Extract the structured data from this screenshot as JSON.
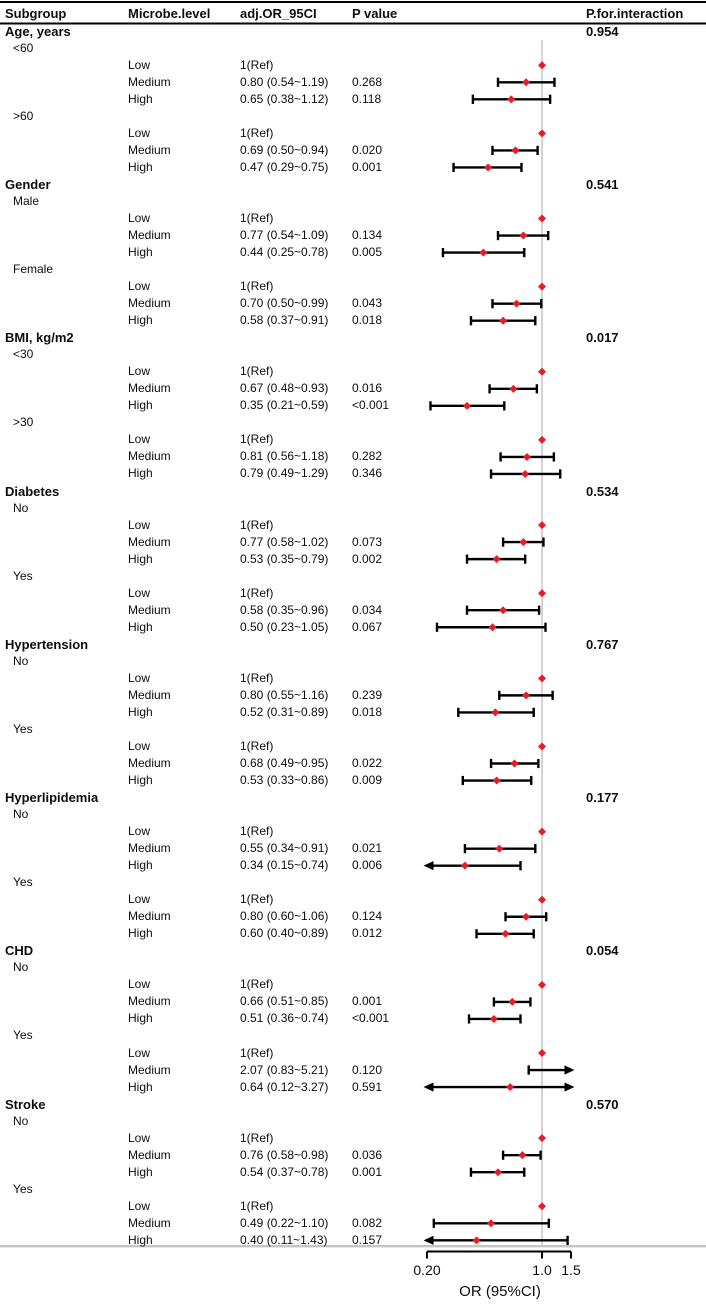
{
  "columns": {
    "subgroup": "Subgroup",
    "microbe_level": "Microbe.level",
    "adj_or": "adj.OR_95CI",
    "p_value": "P value",
    "p_interaction": "P.for.interaction"
  },
  "colors": {
    "marker": "#e81c24",
    "ci_line": "#000000",
    "ref_line": "#c9c9c9",
    "top_rule": "#000000",
    "header_rule": "#000000",
    "bottom_rule": "#c4c4c4",
    "text": "#0d0d0d"
  },
  "chart_data": {
    "type": "forest",
    "xlabel": "OR (95%CI)",
    "x_scale": "log",
    "x_ticks": [
      0.2,
      1.0,
      1.5
    ],
    "x_tick_labels": [
      "0.20",
      "1.0",
      "1.5"
    ],
    "clip_range": [
      0.2,
      1.5
    ],
    "ref_value": 1.0,
    "legend": "red diamond = adjusted OR point estimate; black bar = 95% CI; arrows = CI exceeds axis range",
    "groups": [
      {
        "label": "Age, years",
        "p_interaction": "0.954",
        "subgroups": [
          {
            "label": "<60",
            "levels": [
              {
                "level": "Low",
                "or_text": "1(Ref)",
                "p": "",
                "ref": true
              },
              {
                "level": "Medium",
                "or_text": "0.80 (0.54~1.19)",
                "p": "0.268",
                "or": 0.8,
                "lo": 0.54,
                "hi": 1.19
              },
              {
                "level": "High",
                "or_text": "0.65 (0.38~1.12)",
                "p": "0.118",
                "or": 0.65,
                "lo": 0.38,
                "hi": 1.12
              }
            ]
          },
          {
            "label": ">60",
            "levels": [
              {
                "level": "Low",
                "or_text": "1(Ref)",
                "p": "",
                "ref": true
              },
              {
                "level": "Medium",
                "or_text": "0.69 (0.50~0.94)",
                "p": "0.020",
                "or": 0.69,
                "lo": 0.5,
                "hi": 0.94
              },
              {
                "level": "High",
                "or_text": "0.47 (0.29~0.75)",
                "p": "0.001",
                "or": 0.47,
                "lo": 0.29,
                "hi": 0.75
              }
            ]
          }
        ]
      },
      {
        "label": "Gender",
        "p_interaction": "0.541",
        "subgroups": [
          {
            "label": "Male",
            "levels": [
              {
                "level": "Low",
                "or_text": "1(Ref)",
                "p": "",
                "ref": true
              },
              {
                "level": "Medium",
                "or_text": "0.77 (0.54~1.09)",
                "p": "0.134",
                "or": 0.77,
                "lo": 0.54,
                "hi": 1.09
              },
              {
                "level": "High",
                "or_text": "0.44 (0.25~0.78)",
                "p": "0.005",
                "or": 0.44,
                "lo": 0.25,
                "hi": 0.78
              }
            ]
          },
          {
            "label": "Female",
            "levels": [
              {
                "level": "Low",
                "or_text": "1(Ref)",
                "p": "",
                "ref": true
              },
              {
                "level": "Medium",
                "or_text": "0.70 (0.50~0.99)",
                "p": "0.043",
                "or": 0.7,
                "lo": 0.5,
                "hi": 0.99
              },
              {
                "level": "High",
                "or_text": "0.58 (0.37~0.91)",
                "p": "0.018",
                "or": 0.58,
                "lo": 0.37,
                "hi": 0.91
              }
            ]
          }
        ]
      },
      {
        "label": "BMI, kg/m2",
        "p_interaction": "0.017",
        "subgroups": [
          {
            "label": "<30",
            "levels": [
              {
                "level": "Low",
                "or_text": "1(Ref)",
                "p": "",
                "ref": true
              },
              {
                "level": "Medium",
                "or_text": "0.67 (0.48~0.93)",
                "p": "0.016",
                "or": 0.67,
                "lo": 0.48,
                "hi": 0.93
              },
              {
                "level": "High",
                "or_text": "0.35 (0.21~0.59)",
                "p": "<0.001",
                "or": 0.35,
                "lo": 0.21,
                "hi": 0.59
              }
            ]
          },
          {
            "label": ">30",
            "levels": [
              {
                "level": "Low",
                "or_text": "1(Ref)",
                "p": "",
                "ref": true
              },
              {
                "level": "Medium",
                "or_text": "0.81 (0.56~1.18)",
                "p": "0.282",
                "or": 0.81,
                "lo": 0.56,
                "hi": 1.18
              },
              {
                "level": "High",
                "or_text": "0.79 (0.49~1.29)",
                "p": "0.346",
                "or": 0.79,
                "lo": 0.49,
                "hi": 1.29
              }
            ]
          }
        ]
      },
      {
        "label": "Diabetes",
        "p_interaction": "0.534",
        "subgroups": [
          {
            "label": "No",
            "levels": [
              {
                "level": "Low",
                "or_text": "1(Ref)",
                "p": "",
                "ref": true
              },
              {
                "level": "Medium",
                "or_text": "0.77 (0.58~1.02)",
                "p": "0.073",
                "or": 0.77,
                "lo": 0.58,
                "hi": 1.02
              },
              {
                "level": "High",
                "or_text": "0.53 (0.35~0.79)",
                "p": "0.002",
                "or": 0.53,
                "lo": 0.35,
                "hi": 0.79
              }
            ]
          },
          {
            "label": "Yes",
            "levels": [
              {
                "level": "Low",
                "or_text": "1(Ref)",
                "p": "",
                "ref": true
              },
              {
                "level": "Medium",
                "or_text": "0.58 (0.35~0.96)",
                "p": "0.034",
                "or": 0.58,
                "lo": 0.35,
                "hi": 0.96
              },
              {
                "level": "High",
                "or_text": "0.50 (0.23~1.05)",
                "p": "0.067",
                "or": 0.5,
                "lo": 0.23,
                "hi": 1.05
              }
            ]
          }
        ]
      },
      {
        "label": "Hypertension",
        "p_interaction": "0.767",
        "subgroups": [
          {
            "label": "No",
            "levels": [
              {
                "level": "Low",
                "or_text": "1(Ref)",
                "p": "",
                "ref": true
              },
              {
                "level": "Medium",
                "or_text": "0.80 (0.55~1.16)",
                "p": "0.239",
                "or": 0.8,
                "lo": 0.55,
                "hi": 1.16
              },
              {
                "level": "High",
                "or_text": "0.52 (0.31~0.89)",
                "p": "0.018",
                "or": 0.52,
                "lo": 0.31,
                "hi": 0.89
              }
            ]
          },
          {
            "label": "Yes",
            "levels": [
              {
                "level": "Low",
                "or_text": "1(Ref)",
                "p": "",
                "ref": true
              },
              {
                "level": "Medium",
                "or_text": "0.68 (0.49~0.95)",
                "p": "0.022",
                "or": 0.68,
                "lo": 0.49,
                "hi": 0.95
              },
              {
                "level": "High",
                "or_text": "0.53 (0.33~0.86)",
                "p": "0.009",
                "or": 0.53,
                "lo": 0.33,
                "hi": 0.86
              }
            ]
          }
        ]
      },
      {
        "label": "Hyperlipidemia",
        "p_interaction": "0.177",
        "subgroups": [
          {
            "label": "No",
            "levels": [
              {
                "level": "Low",
                "or_text": "1(Ref)",
                "p": "",
                "ref": true
              },
              {
                "level": "Medium",
                "or_text": "0.55 (0.34~0.91)",
                "p": "0.021",
                "or": 0.55,
                "lo": 0.34,
                "hi": 0.91
              },
              {
                "level": "High",
                "or_text": "0.34 (0.15~0.74)",
                "p": "0.006",
                "or": 0.34,
                "lo": 0.15,
                "hi": 0.74
              }
            ]
          },
          {
            "label": "Yes",
            "levels": [
              {
                "level": "Low",
                "or_text": "1(Ref)",
                "p": "",
                "ref": true
              },
              {
                "level": "Medium",
                "or_text": "0.80 (0.60~1.06)",
                "p": "0.124",
                "or": 0.8,
                "lo": 0.6,
                "hi": 1.06
              },
              {
                "level": "High",
                "or_text": "0.60 (0.40~0.89)",
                "p": "0.012",
                "or": 0.6,
                "lo": 0.4,
                "hi": 0.89
              }
            ]
          }
        ]
      },
      {
        "label": "CHD",
        "p_interaction": "0.054",
        "subgroups": [
          {
            "label": "No",
            "levels": [
              {
                "level": "Low",
                "or_text": "1(Ref)",
                "p": "",
                "ref": true
              },
              {
                "level": "Medium",
                "or_text": "0.66 (0.51~0.85)",
                "p": "0.001",
                "or": 0.66,
                "lo": 0.51,
                "hi": 0.85
              },
              {
                "level": "High",
                "or_text": "0.51 (0.36~0.74)",
                "p": "<0.001",
                "or": 0.51,
                "lo": 0.36,
                "hi": 0.74
              }
            ]
          },
          {
            "label": "Yes",
            "levels": [
              {
                "level": "Low",
                "or_text": "1(Ref)",
                "p": "",
                "ref": true
              },
              {
                "level": "Medium",
                "or_text": "2.07 (0.83~5.21)",
                "p": "0.120",
                "or": 2.07,
                "lo": 0.83,
                "hi": 5.21
              },
              {
                "level": "High",
                "or_text": "0.64 (0.12~3.27)",
                "p": "0.591",
                "or": 0.64,
                "lo": 0.12,
                "hi": 3.27
              }
            ]
          }
        ]
      },
      {
        "label": "Stroke",
        "p_interaction": "0.570",
        "subgroups": [
          {
            "label": "No",
            "levels": [
              {
                "level": "Low",
                "or_text": "1(Ref)",
                "p": "",
                "ref": true
              },
              {
                "level": "Medium",
                "or_text": "0.76 (0.58~0.98)",
                "p": "0.036",
                "or": 0.76,
                "lo": 0.58,
                "hi": 0.98
              },
              {
                "level": "High",
                "or_text": "0.54 (0.37~0.78)",
                "p": "0.001",
                "or": 0.54,
                "lo": 0.37,
                "hi": 0.78
              }
            ]
          },
          {
            "label": "Yes",
            "levels": [
              {
                "level": "Low",
                "or_text": "1(Ref)",
                "p": "",
                "ref": true
              },
              {
                "level": "Medium",
                "or_text": "0.49 (0.22~1.10)",
                "p": "0.082",
                "or": 0.49,
                "lo": 0.22,
                "hi": 1.1
              },
              {
                "level": "High",
                "or_text": "0.40 (0.11~1.43)",
                "p": "0.157",
                "or": 0.4,
                "lo": 0.11,
                "hi": 1.43
              }
            ]
          }
        ]
      }
    ]
  }
}
